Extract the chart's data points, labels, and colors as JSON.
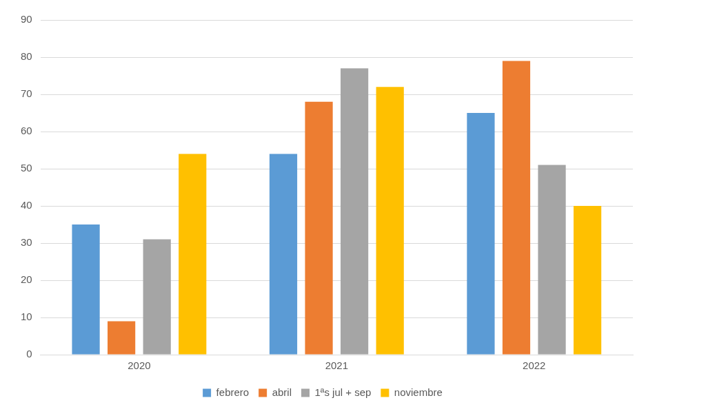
{
  "chart_data": {
    "type": "bar",
    "categories": [
      "2020",
      "2021",
      "2022"
    ],
    "series": [
      {
        "name": "febrero",
        "color": "#5b9bd5",
        "values": [
          35,
          54,
          65
        ]
      },
      {
        "name": "abril",
        "color": "#ed7d31",
        "values": [
          9,
          68,
          79
        ]
      },
      {
        "name": "1ªs jul + sep",
        "color": "#a5a5a5",
        "values": [
          31,
          77,
          51
        ]
      },
      {
        "name": "noviembre",
        "color": "#ffc000",
        "values": [
          54,
          72,
          40
        ]
      }
    ],
    "ylim": [
      0,
      90
    ],
    "yticks": [
      0,
      10,
      20,
      30,
      40,
      50,
      60,
      70,
      80,
      90
    ],
    "grid": "y",
    "legend": "bottom"
  }
}
